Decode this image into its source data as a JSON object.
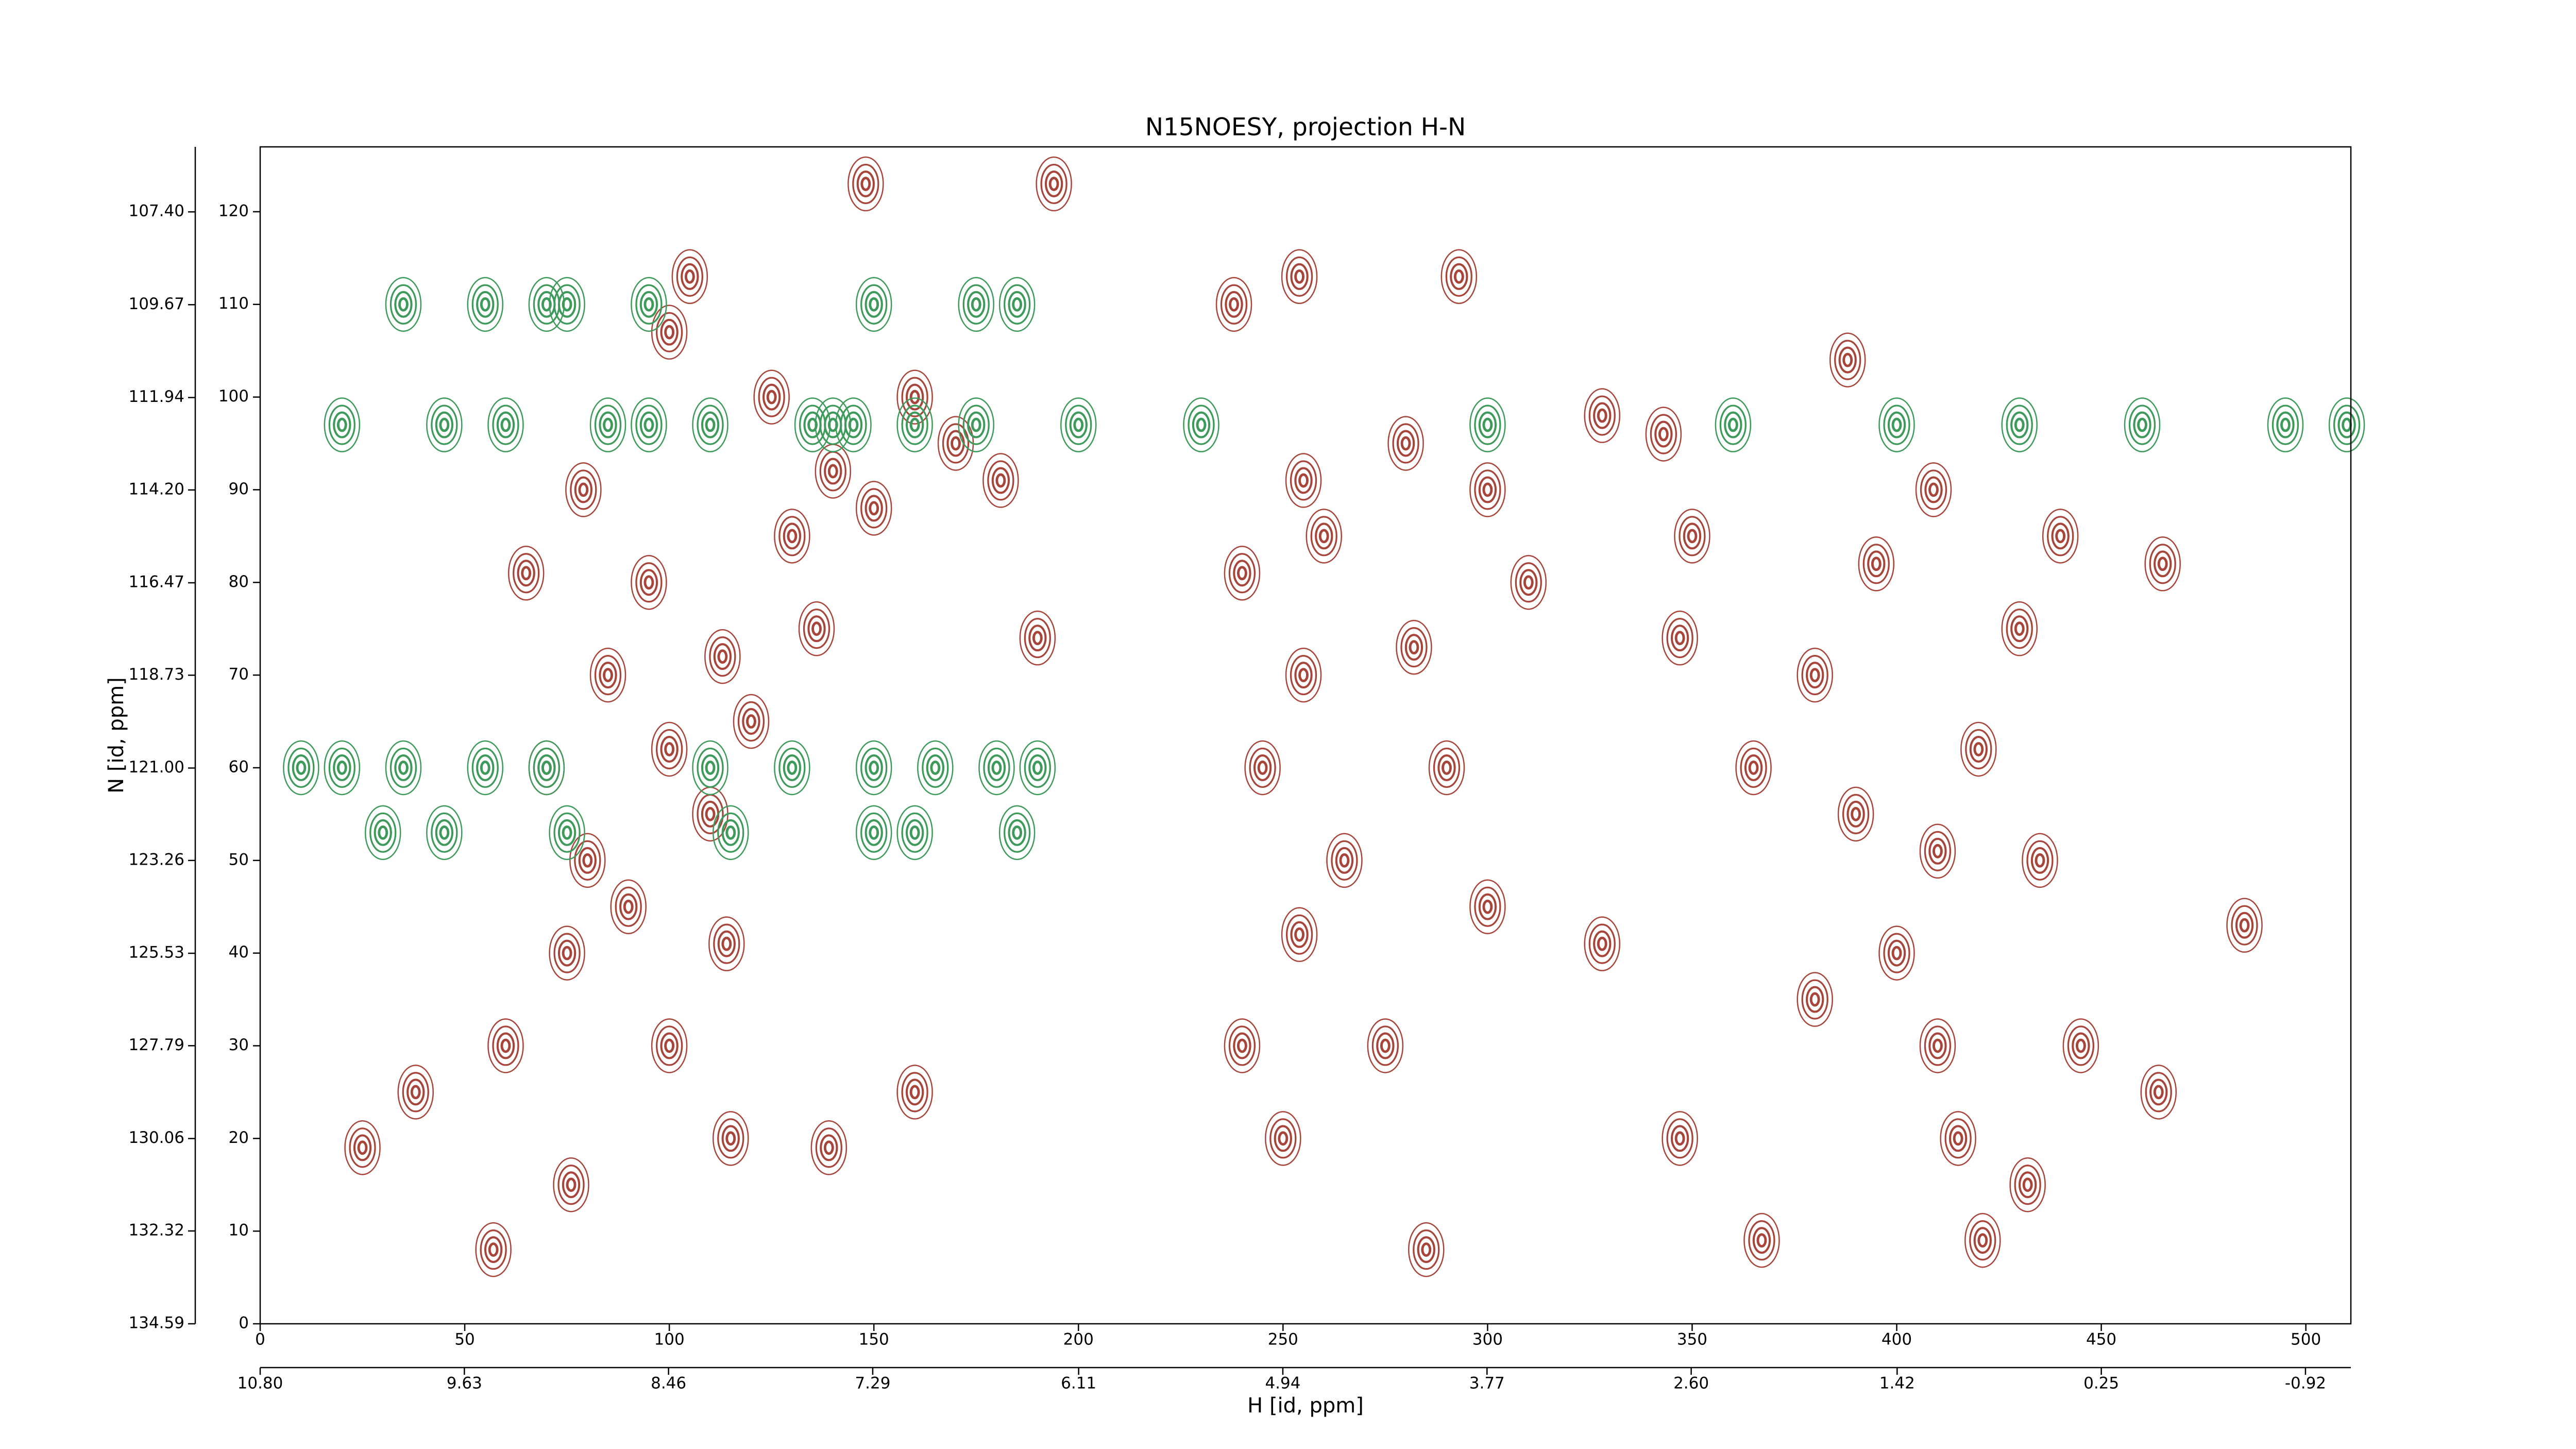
{
  "chart_data": {
    "type": "contour",
    "title": "N15NOESY, projection H-N",
    "x_label": "H [id, ppm]",
    "y_label": "N [id, ppm]",
    "xlim": [
      0,
      511
    ],
    "xticks": [
      0,
      50,
      100,
      150,
      200,
      250,
      300,
      350,
      400,
      450,
      500
    ],
    "ylim": [
      0,
      127
    ],
    "yticks": [
      0,
      10,
      20,
      30,
      40,
      50,
      60,
      70,
      80,
      90,
      100,
      110,
      120
    ],
    "x2lim": [
      10.8,
      -1.18
    ],
    "x2ticks": [
      {
        "value": 10.8,
        "label": "10.80"
      },
      9.63,
      8.46,
      7.29,
      6.11,
      4.94,
      3.77,
      {
        "value": 2.6,
        "label": "2.60"
      },
      1.42,
      0.25,
      -0.92
    ],
    "y2lim": [
      134.59,
      105.81
    ],
    "y2ticks": [
      134.59,
      132.32,
      130.06,
      127.79,
      125.53,
      123.26,
      {
        "value": 121,
        "label": "121.00"
      },
      118.73,
      116.47,
      {
        "value": 114.2,
        "label": "114.20"
      },
      111.94,
      109.67,
      {
        "value": 107.4,
        "label": "107.40"
      }
    ],
    "series": [
      {
        "color": "#a8453a",
        "x": [
          25,
          38,
          57,
          76,
          65,
          79,
          100,
          105,
          113,
          114,
          139,
          136,
          148,
          160,
          194,
          190,
          240,
          238,
          254,
          255,
          285,
          282,
          293,
          328,
          328,
          343,
          347,
          388,
          409,
          410,
          421,
          432,
          464,
          465,
          485,
          347,
          367,
          254,
          181,
          70,
          80,
          90,
          100,
          110,
          120,
          85,
          95,
          75,
          100,
          115,
          60,
          130,
          125,
          140,
          150,
          160,
          170,
          245,
          255,
          265,
          275,
          290,
          300,
          240,
          250,
          260,
          280,
          300,
          310,
          380,
          390,
          400,
          410,
          420,
          430,
          435,
          380,
          395,
          415,
          365,
          350,
          440,
          445
        ],
        "y": [
          19,
          25,
          8,
          15,
          81,
          90,
          107,
          113,
          72,
          41,
          19,
          75,
          123,
          25,
          123,
          74,
          81,
          110,
          113,
          91,
          8,
          73,
          113,
          41,
          98,
          96,
          74,
          104,
          90,
          51,
          9,
          15,
          25,
          82,
          43,
          20,
          9,
          42,
          91,
          60,
          50,
          45,
          62,
          55,
          65,
          70,
          80,
          40,
          30,
          20,
          30,
          85,
          100,
          92,
          88,
          100,
          95,
          60,
          70,
          50,
          30,
          60,
          45,
          30,
          20,
          85,
          95,
          90,
          80,
          70,
          55,
          40,
          30,
          62,
          75,
          50,
          35,
          82,
          20,
          60,
          85,
          85,
          30
        ]
      },
      {
        "color": "#3e9a5a",
        "x": [
          20,
          45,
          60,
          85,
          95,
          110,
          135,
          140,
          145,
          160,
          175,
          200,
          230,
          300,
          360,
          400,
          430,
          460,
          495,
          510,
          10,
          20,
          35,
          55,
          70,
          110,
          130,
          150,
          165,
          180,
          190,
          35,
          55,
          70,
          75,
          95,
          150,
          175,
          185,
          30,
          45,
          75,
          115,
          150,
          160,
          185
        ],
        "y": [
          97,
          97,
          97,
          97,
          97,
          97,
          97,
          97,
          97,
          97,
          97,
          97,
          97,
          97,
          97,
          97,
          97,
          97,
          97,
          97,
          60,
          60,
          60,
          60,
          60,
          60,
          60,
          60,
          60,
          60,
          60,
          110,
          110,
          110,
          110,
          110,
          110,
          110,
          110,
          53,
          53,
          53,
          53,
          53,
          53,
          53
        ]
      }
    ]
  }
}
